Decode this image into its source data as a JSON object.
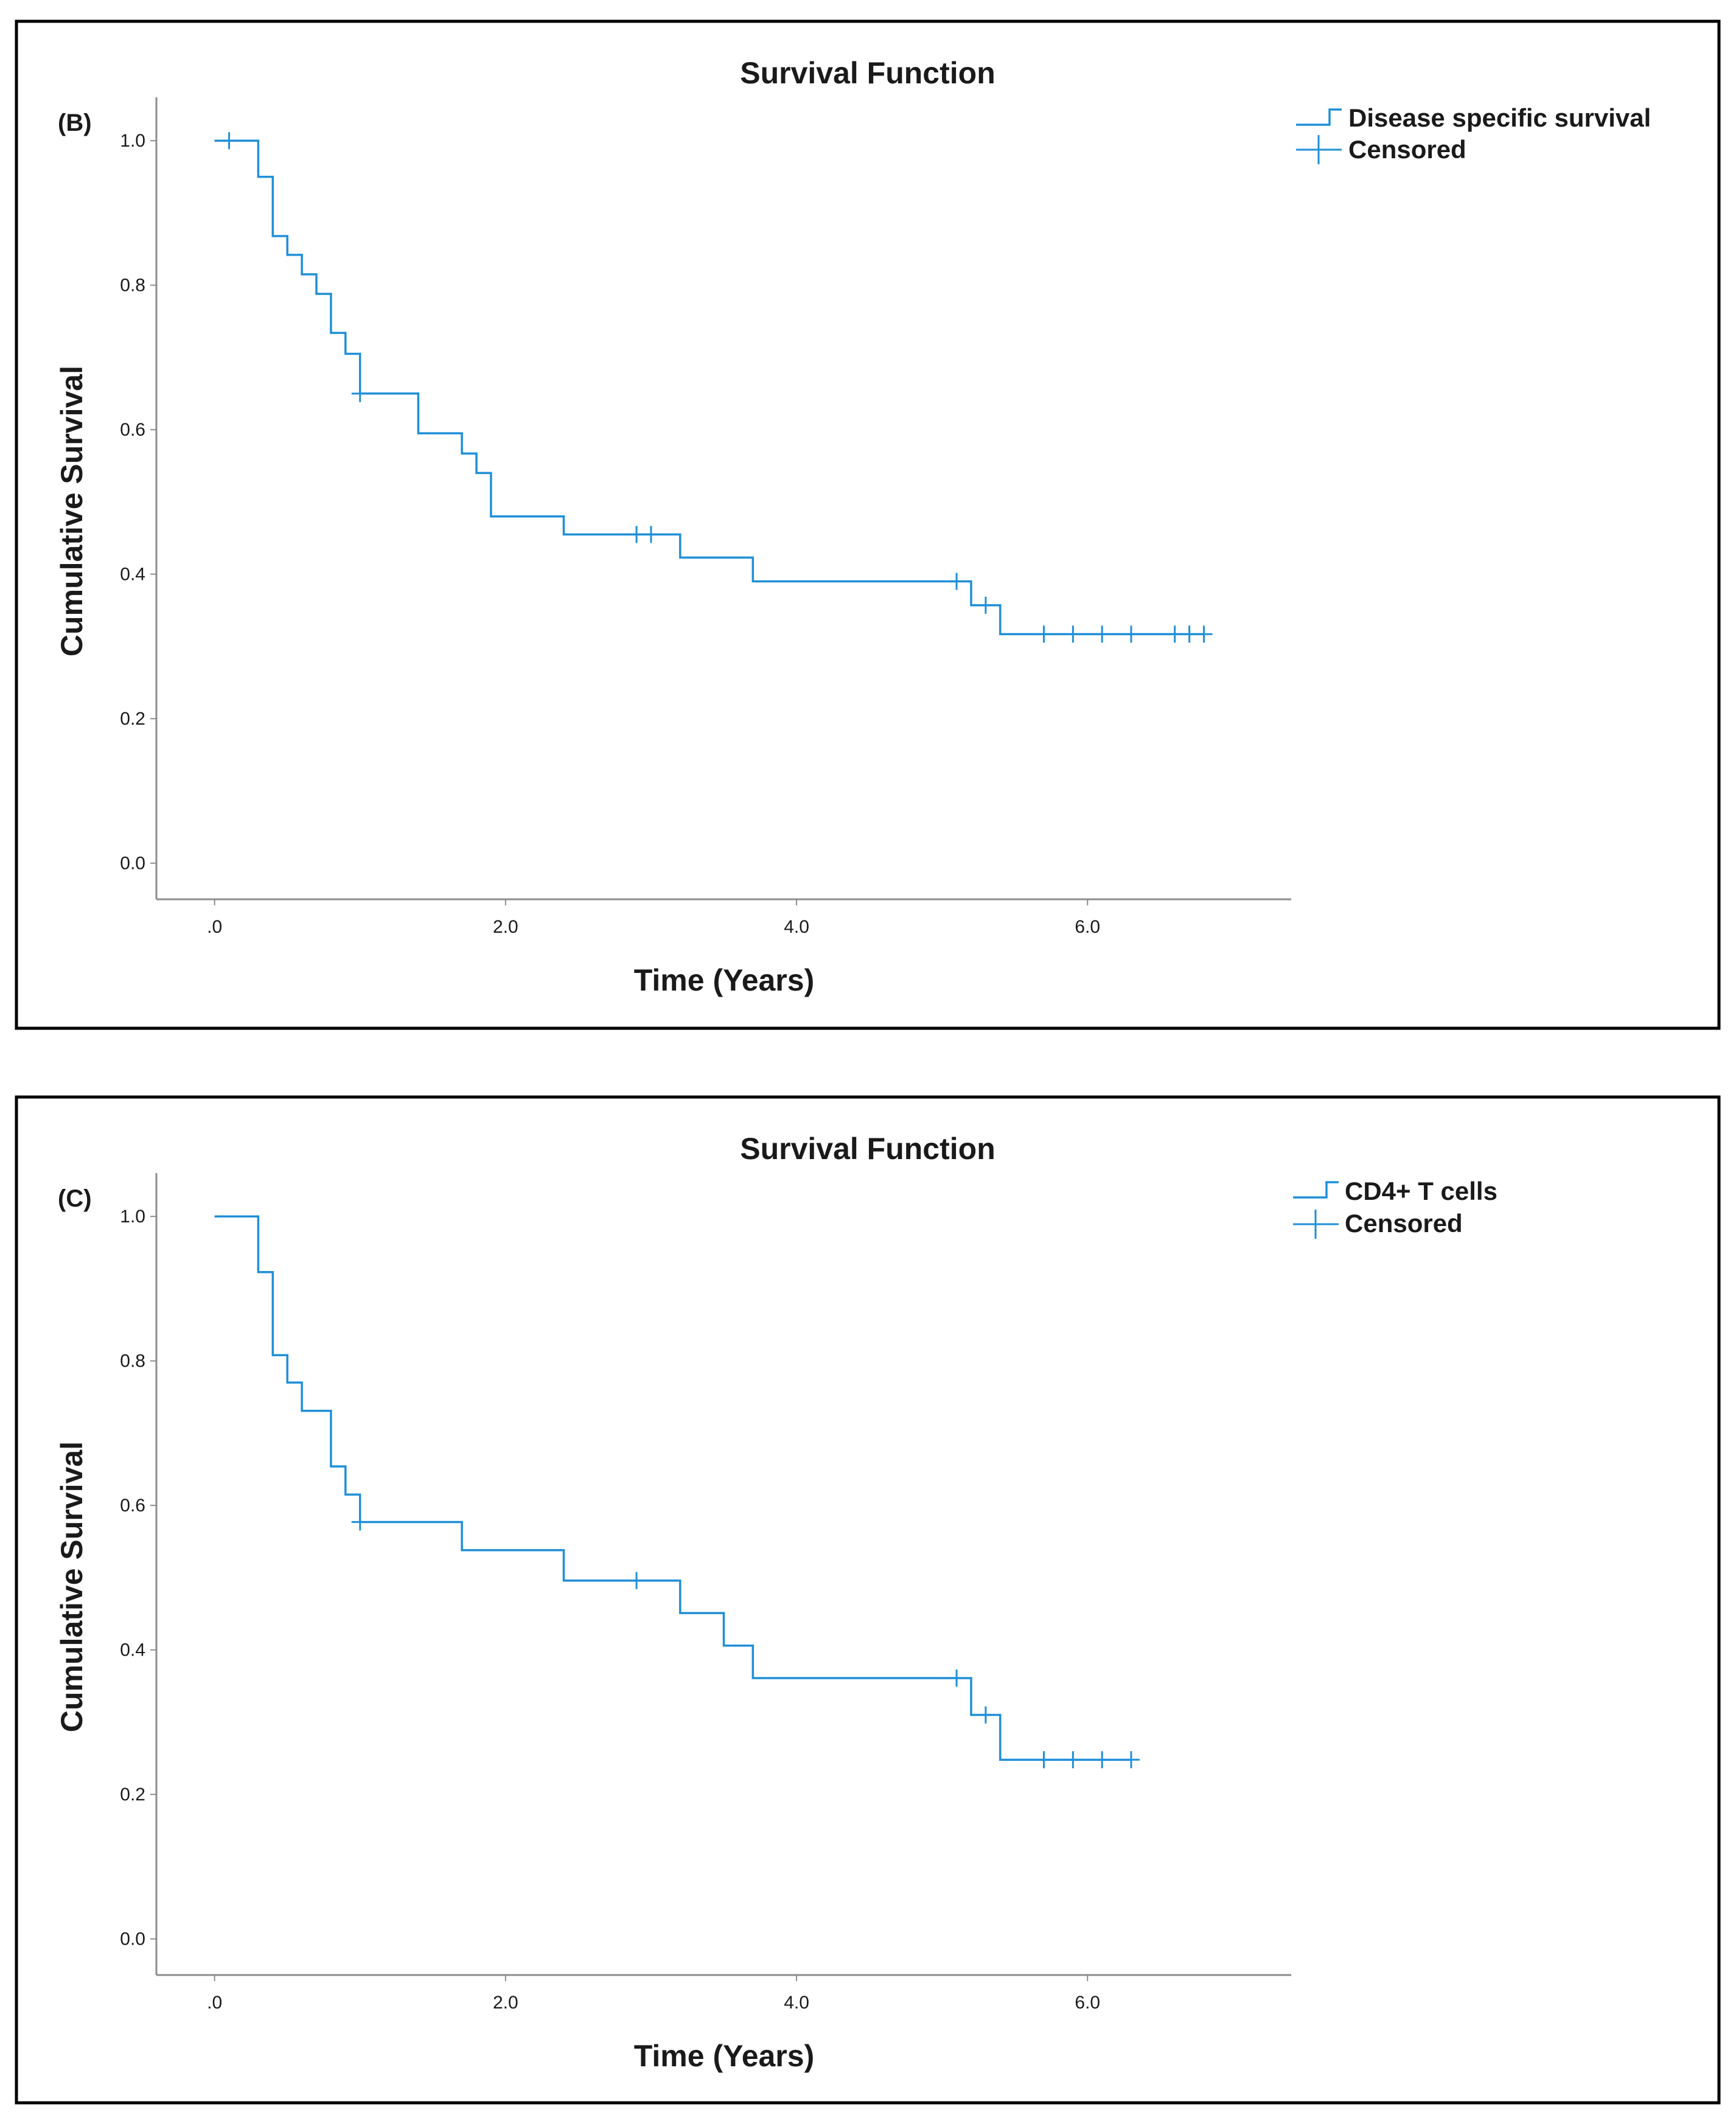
{
  "chart_data": [
    {
      "type": "line",
      "panel_label": "(B)",
      "title": "Survival Function",
      "xlabel": "Time (Years)",
      "ylabel": "Cumulative Survival",
      "xlim": [
        -0.4,
        7.4
      ],
      "ylim": [
        -0.05,
        1.06
      ],
      "x_ticks": [
        0,
        2,
        4,
        6
      ],
      "x_tick_labels": [
        ".0",
        "2.0",
        "4.0",
        "6.0"
      ],
      "y_ticks": [
        0,
        0.2,
        0.4,
        0.6,
        0.8,
        1.0
      ],
      "y_tick_labels": [
        "0.0",
        "0.2",
        "0.4",
        "0.6",
        "0.8",
        "1.0"
      ],
      "color": "#1f8fd8",
      "legend": {
        "placement": "top-right",
        "entries": [
          "Disease specific survival",
          "Censored"
        ]
      },
      "series": [
        {
          "name": "Disease specific survival",
          "steps": [
            [
              0,
              1.0
            ],
            [
              0.3,
              0.95
            ],
            [
              0.4,
              0.868
            ],
            [
              0.5,
              0.842
            ],
            [
              0.6,
              0.815
            ],
            [
              0.7,
              0.788
            ],
            [
              0.8,
              0.734
            ],
            [
              0.9,
              0.705
            ],
            [
              1.0,
              0.65
            ],
            [
              1.4,
              0.595
            ],
            [
              1.7,
              0.567
            ],
            [
              1.8,
              0.54
            ],
            [
              1.9,
              0.48
            ],
            [
              2.4,
              0.455
            ],
            [
              3.2,
              0.423
            ],
            [
              3.7,
              0.39
            ],
            [
              5.2,
              0.357
            ],
            [
              5.4,
              0.317
            ]
          ],
          "end_time": 6.8,
          "censored": [
            [
              0.1,
              1.0
            ],
            [
              1.0,
              0.65
            ],
            [
              2.9,
              0.455
            ],
            [
              3.0,
              0.455
            ],
            [
              5.1,
              0.39
            ],
            [
              5.3,
              0.357
            ],
            [
              5.7,
              0.317
            ],
            [
              5.9,
              0.317
            ],
            [
              6.1,
              0.317
            ],
            [
              6.3,
              0.317
            ],
            [
              6.6,
              0.317
            ],
            [
              6.7,
              0.317
            ],
            [
              6.8,
              0.317
            ]
          ]
        }
      ]
    },
    {
      "type": "line",
      "panel_label": "(C)",
      "title": "Survival Function",
      "xlabel": "Time (Years)",
      "ylabel": "Cumulative Survival",
      "xlim": [
        -0.4,
        7.4
      ],
      "ylim": [
        -0.05,
        1.06
      ],
      "x_ticks": [
        0,
        2,
        4,
        6
      ],
      "x_tick_labels": [
        ".0",
        "2.0",
        "4.0",
        "6.0"
      ],
      "y_ticks": [
        0,
        0.2,
        0.4,
        0.6,
        0.8,
        1.0
      ],
      "y_tick_labels": [
        "0.0",
        "0.2",
        "0.4",
        "0.6",
        "0.8",
        "1.0"
      ],
      "color": "#1f8fd8",
      "legend": {
        "placement": "top-right",
        "entries": [
          "CD4+ T cells",
          "Censored"
        ]
      },
      "series": [
        {
          "name": "CD4+ T cells",
          "steps": [
            [
              0,
              1.0
            ],
            [
              0.3,
              0.923
            ],
            [
              0.4,
              0.808
            ],
            [
              0.5,
              0.77
            ],
            [
              0.6,
              0.731
            ],
            [
              0.8,
              0.654
            ],
            [
              0.9,
              0.615
            ],
            [
              1.0,
              0.577
            ],
            [
              1.7,
              0.538
            ],
            [
              2.4,
              0.496
            ],
            [
              3.2,
              0.451
            ],
            [
              3.5,
              0.406
            ],
            [
              3.7,
              0.361
            ],
            [
              5.2,
              0.31
            ],
            [
              5.4,
              0.248
            ]
          ],
          "end_time": 6.3,
          "censored": [
            [
              1.0,
              0.577
            ],
            [
              2.9,
              0.496
            ],
            [
              5.1,
              0.361
            ],
            [
              5.3,
              0.31
            ],
            [
              5.7,
              0.248
            ],
            [
              5.9,
              0.248
            ],
            [
              6.1,
              0.248
            ],
            [
              6.3,
              0.248
            ]
          ]
        }
      ]
    }
  ]
}
